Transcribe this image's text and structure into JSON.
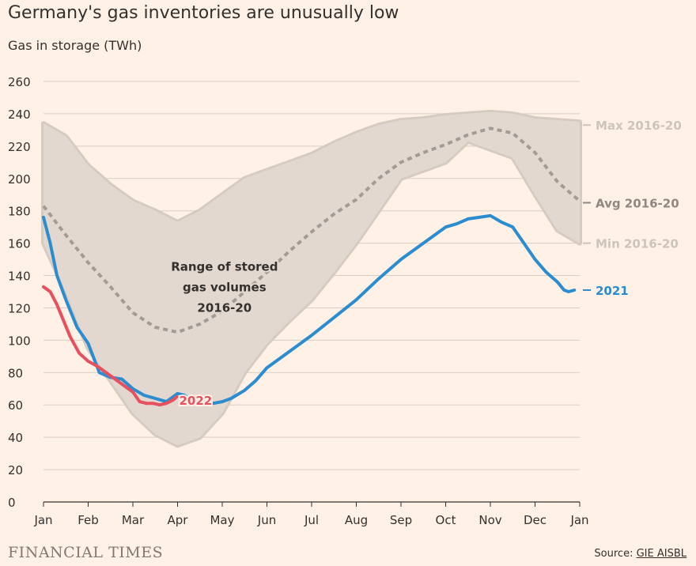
{
  "title": "Germany's gas inventories are unusually low",
  "subtitle": "Gas in storage (TWh)",
  "brand": "FINANCIAL TIMES",
  "source_label": "Source:",
  "source_link": "GIE AISBL",
  "colors": {
    "background": "#fff1e5",
    "band": "#e3d8cf",
    "band_edge": "#d6cbc1",
    "avg": "#a39c96",
    "max_label": "#cdc4bc",
    "min_label": "#cdc4bc",
    "series_2021": "#2b8ccf",
    "series_2022": "#e6505f",
    "grid": "#d8cec5",
    "text": "#33302e"
  },
  "chart_data": {
    "type": "line",
    "title": "Germany's gas inventories are unusually low",
    "ylabel": "Gas in storage (TWh)",
    "xlabel": "",
    "ylim": [
      0,
      260
    ],
    "yticks": [
      0,
      20,
      40,
      60,
      80,
      100,
      120,
      140,
      160,
      180,
      200,
      220,
      240,
      260
    ],
    "xlim": [
      0,
      12
    ],
    "xticks": [
      {
        "x": 0,
        "label": "Jan"
      },
      {
        "x": 1,
        "label": "Feb"
      },
      {
        "x": 2,
        "label": "Mar"
      },
      {
        "x": 3,
        "label": "Apr"
      },
      {
        "x": 4,
        "label": "May"
      },
      {
        "x": 5,
        "label": "Jun"
      },
      {
        "x": 6,
        "label": "Jul"
      },
      {
        "x": 7,
        "label": "Aug"
      },
      {
        "x": 8,
        "label": "Sep"
      },
      {
        "x": 9,
        "label": "Oct"
      },
      {
        "x": 10,
        "label": "Nov"
      },
      {
        "x": 11,
        "label": "Dec"
      },
      {
        "x": 12,
        "label": "Jan"
      }
    ],
    "grid": true,
    "band": {
      "name": "Range of stored gas volumes 2016-20",
      "x": [
        0,
        0.5,
        1,
        1.5,
        2,
        2.5,
        3,
        3.5,
        4,
        4.5,
        5,
        5.5,
        6,
        6.5,
        7,
        7.5,
        8,
        8.5,
        9,
        9.5,
        10,
        10.5,
        11,
        11.5,
        12
      ],
      "max": [
        234,
        226,
        208,
        196,
        186,
        180,
        173,
        180,
        190,
        200,
        205,
        210,
        215,
        222,
        228,
        233,
        236,
        237,
        239,
        240,
        241,
        240,
        237,
        236,
        235
      ],
      "min": [
        160,
        130,
        95,
        75,
        55,
        42,
        35,
        40,
        55,
        80,
        98,
        112,
        125,
        142,
        160,
        180,
        200,
        205,
        210,
        223,
        218,
        213,
        190,
        168,
        160
      ]
    },
    "series": [
      {
        "name": "Avg 2016-20",
        "style": "dashed",
        "x": [
          0,
          0.5,
          1,
          1.5,
          2,
          2.5,
          3,
          3.5,
          4,
          4.5,
          5,
          5.5,
          6,
          6.5,
          7,
          7.5,
          8,
          8.5,
          9,
          9.5,
          10,
          10.5,
          11,
          11.5,
          12
        ],
        "values": [
          183,
          165,
          148,
          133,
          117,
          108,
          105,
          110,
          118,
          130,
          142,
          155,
          167,
          178,
          187,
          200,
          210,
          216,
          221,
          227,
          231,
          228,
          216,
          198,
          186
        ]
      },
      {
        "name": "2021",
        "style": "solid",
        "x": [
          0,
          0.15,
          0.3,
          0.5,
          0.75,
          1,
          1.25,
          1.5,
          1.75,
          2,
          2.25,
          2.5,
          2.75,
          3,
          3.15,
          3.4,
          3.6,
          4,
          4.2,
          4.5,
          4.75,
          5,
          5.5,
          6,
          6.5,
          7,
          7.5,
          8,
          8.5,
          9,
          9.25,
          9.5,
          9.75,
          10,
          10.25,
          10.5,
          10.75,
          11,
          11.25,
          11.5,
          11.65,
          11.75,
          11.88
        ],
        "values": [
          176,
          160,
          140,
          125,
          108,
          98,
          80,
          77,
          76,
          70,
          66,
          64,
          62,
          67,
          66,
          61,
          60,
          62,
          64,
          69,
          75,
          83,
          93,
          103,
          114,
          125,
          138,
          150,
          160,
          170,
          172,
          175,
          176,
          177,
          173,
          170,
          160,
          150,
          142,
          136,
          131,
          130,
          131
        ]
      },
      {
        "name": "2022",
        "style": "solid",
        "x": [
          0,
          0.15,
          0.3,
          0.45,
          0.6,
          0.8,
          1,
          1.2,
          1.4,
          1.6,
          1.8,
          2,
          2.15,
          2.3,
          2.45,
          2.6,
          2.75,
          2.9,
          2.98
        ],
        "values": [
          133,
          130,
          122,
          112,
          102,
          92,
          87,
          84,
          80,
          76,
          72,
          68,
          62,
          61,
          61,
          60,
          61,
          63,
          65
        ]
      }
    ],
    "annotations": [
      {
        "id": "range",
        "lines": [
          "Range of stored",
          "gas volumes",
          "2016-20"
        ]
      },
      {
        "id": "label_2022",
        "text": "2022"
      },
      {
        "id": "label_2021",
        "text": "2021"
      },
      {
        "id": "label_max",
        "text": "Max 2016-20"
      },
      {
        "id": "label_avg",
        "text": "Avg 2016-20"
      },
      {
        "id": "label_min",
        "text": "Min 2016-20"
      }
    ]
  }
}
